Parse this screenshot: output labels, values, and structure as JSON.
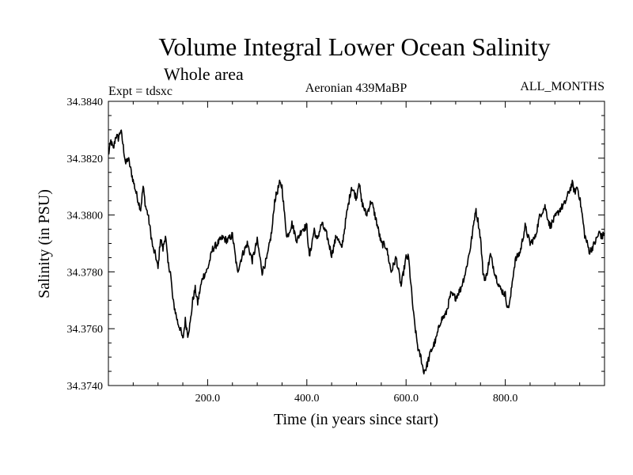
{
  "chart_data": {
    "type": "line",
    "title": "Volume Integral Lower Ocean Salinity",
    "subtitle": "Whole area",
    "expt_label": "Expt = tdsxc",
    "period_label": "Aeronian 439MaBP",
    "months_label": "ALL_MONTHS",
    "xlabel": "Time (in years since start)",
    "ylabel": "Salinity (in PSU)",
    "xlim": [
      0,
      1000
    ],
    "ylim": [
      34.374,
      34.384
    ],
    "x_ticks": [
      200,
      400,
      600,
      800
    ],
    "x_tick_labels": [
      "200.0",
      "400.0",
      "600.0",
      "800.0"
    ],
    "y_ticks": [
      34.374,
      34.376,
      34.378,
      34.38,
      34.382,
      34.384
    ],
    "y_tick_labels": [
      "34.3740",
      "34.3760",
      "34.3780",
      "34.3800",
      "34.3820",
      "34.3840"
    ],
    "grid": false,
    "series": [
      {
        "name": "salinity",
        "color": "#000000",
        "x": [
          0,
          5,
          10,
          15,
          20,
          25,
          30,
          35,
          40,
          50,
          60,
          65,
          70,
          75,
          80,
          85,
          90,
          95,
          100,
          105,
          110,
          115,
          120,
          125,
          130,
          135,
          140,
          145,
          150,
          155,
          160,
          165,
          170,
          175,
          180,
          185,
          190,
          200,
          210,
          220,
          230,
          240,
          250,
          260,
          270,
          280,
          290,
          300,
          310,
          320,
          330,
          335,
          340,
          345,
          350,
          355,
          360,
          370,
          380,
          390,
          400,
          405,
          410,
          415,
          420,
          430,
          440,
          450,
          460,
          470,
          480,
          490,
          500,
          505,
          510,
          520,
          530,
          540,
          550,
          560,
          570,
          580,
          590,
          600,
          605,
          610,
          615,
          620,
          625,
          630,
          635,
          640,
          650,
          660,
          670,
          680,
          690,
          700,
          710,
          720,
          730,
          735,
          740,
          745,
          750,
          755,
          760,
          770,
          780,
          790,
          800,
          805,
          810,
          815,
          820,
          830,
          840,
          850,
          860,
          870,
          880,
          890,
          900,
          910,
          920,
          930,
          935,
          940,
          945,
          950,
          955,
          960,
          970,
          980,
          990,
          995,
          1000
        ],
        "values": [
          34.3821,
          34.3826,
          34.3823,
          34.3828,
          34.3827,
          34.383,
          34.3824,
          34.3818,
          34.382,
          34.3812,
          34.3805,
          34.3802,
          34.381,
          34.3803,
          34.38,
          34.3794,
          34.3788,
          34.3786,
          34.3781,
          34.3792,
          34.3788,
          34.3793,
          34.3783,
          34.378,
          34.377,
          34.3766,
          34.3762,
          34.376,
          34.3756,
          34.3763,
          34.3758,
          34.3762,
          34.377,
          34.3774,
          34.3769,
          34.3774,
          34.3778,
          34.3781,
          34.3788,
          34.379,
          34.3792,
          34.3791,
          34.3793,
          34.378,
          34.3786,
          34.379,
          34.3784,
          34.3791,
          34.378,
          34.3785,
          34.3795,
          34.3805,
          34.3808,
          34.3811,
          34.381,
          34.38,
          34.3792,
          34.3797,
          34.3791,
          34.3795,
          34.3796,
          34.3785,
          34.379,
          34.3795,
          34.3791,
          34.3797,
          34.3793,
          34.3786,
          34.3793,
          34.3788,
          34.38,
          34.381,
          34.3806,
          34.3812,
          34.3805,
          34.38,
          34.3805,
          34.3798,
          34.379,
          34.3789,
          34.378,
          34.3785,
          34.3775,
          34.3785,
          34.3785,
          34.3775,
          34.3765,
          34.3758,
          34.3752,
          34.375,
          34.3745,
          34.3746,
          34.3752,
          34.3756,
          34.3763,
          34.3765,
          34.3772,
          34.3771,
          34.3774,
          34.378,
          34.3789,
          34.3795,
          34.3802,
          34.3798,
          34.3792,
          34.378,
          34.3777,
          34.3786,
          34.3779,
          34.3774,
          34.3772,
          34.3767,
          34.377,
          34.3778,
          34.3784,
          34.3787,
          34.3796,
          34.379,
          34.3792,
          34.38,
          34.3803,
          34.3796,
          34.3799,
          34.3802,
          34.3804,
          34.3809,
          34.3811,
          34.3808,
          34.381,
          34.3806,
          34.38,
          34.3793,
          34.3787,
          34.379,
          34.3794,
          34.3792,
          34.3794
        ]
      }
    ]
  }
}
